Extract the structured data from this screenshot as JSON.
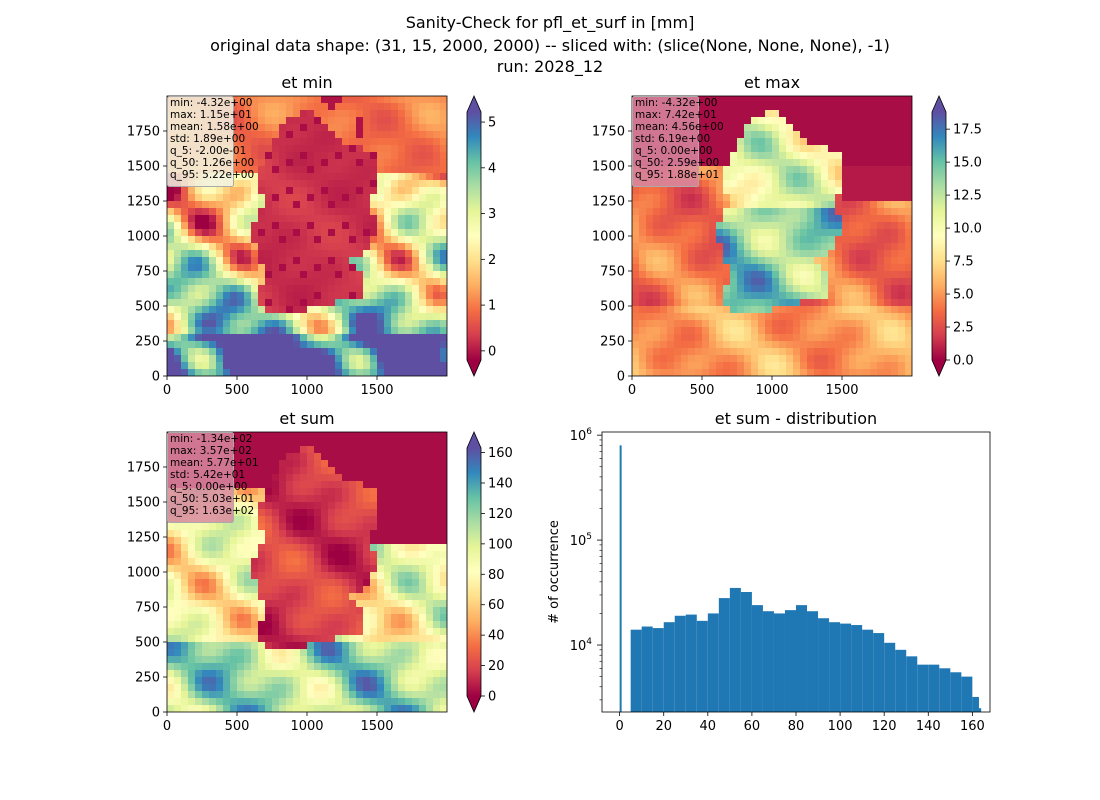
{
  "suptitle": {
    "line1": "Sanity-Check for pfl_et_surf in [mm]",
    "line2": "original data shape: (31, 15, 2000, 2000) -- sliced with: (slice(None, None, None), -1)",
    "line3": "run: 2028_12"
  },
  "panels": [
    {
      "key": "et_min",
      "title": "et min",
      "stats": [
        "min: -4.32e+00",
        "max: 1.15e+01",
        "mean: 1.58e+00",
        "std: 1.89e+00",
        "q_5: -2.00e-01",
        "q_50: 1.26e+00",
        "q_95: 5.22e+00"
      ],
      "xticks": [
        "0",
        "500",
        "1000",
        "1500"
      ],
      "yticks": [
        "0",
        "250",
        "500",
        "750",
        "1000",
        "1250",
        "1500",
        "1750"
      ],
      "colorbar": {
        "ticks": [
          "0",
          "1",
          "2",
          "3",
          "4",
          "5"
        ],
        "min": -0.2,
        "max": 5.22
      }
    },
    {
      "key": "et_max",
      "title": "et max",
      "stats": [
        "min: -4.32e+00",
        "max: 7.42e+01",
        "mean: 4.56e+00",
        "std: 6.19e+00",
        "q_5: 0.00e+00",
        "q_50: 2.59e+00",
        "q_95: 1.88e+01"
      ],
      "xticks": [
        "0",
        "500",
        "1000",
        "1500"
      ],
      "yticks": [
        "0",
        "250",
        "500",
        "750",
        "1000",
        "1250",
        "1500",
        "1750"
      ],
      "colorbar": {
        "ticks": [
          "0.0",
          "2.5",
          "5.0",
          "7.5",
          "10.0",
          "12.5",
          "15.0",
          "17.5"
        ],
        "min": 0,
        "max": 18.8
      }
    },
    {
      "key": "et_sum",
      "title": "et sum",
      "stats": [
        "min: -1.34e+02",
        "max: 3.57e+02",
        "mean: 5.77e+01",
        "std: 5.42e+01",
        "q_5: 0.00e+00",
        "q_50: 5.03e+01",
        "q_95: 1.63e+02"
      ],
      "xticks": [
        "0",
        "500",
        "1000",
        "1500"
      ],
      "yticks": [
        "0",
        "250",
        "500",
        "750",
        "1000",
        "1250",
        "1500",
        "1750"
      ],
      "colorbar": {
        "ticks": [
          "0",
          "20",
          "40",
          "60",
          "80",
          "100",
          "120",
          "140",
          "160"
        ],
        "min": 0,
        "max": 163
      }
    }
  ],
  "histogram": {
    "title": "et sum - distribution",
    "ylabel": "# of occurrence",
    "xticks": [
      "0",
      "20",
      "40",
      "60",
      "80",
      "100",
      "120",
      "140",
      "160"
    ],
    "ytick_exponents": [
      "6",
      "5",
      "4"
    ],
    "ytick_base": "10"
  },
  "colors": {
    "bar": "#1f77b4"
  },
  "chart_data": [
    {
      "type": "heatmap",
      "title": "et min",
      "xlim": [
        0,
        2000
      ],
      "ylim": [
        0,
        2000
      ],
      "colormap": "Spectral",
      "colorbar_range": [
        -0.2,
        5.22
      ],
      "extend": "both"
    },
    {
      "type": "heatmap",
      "title": "et max",
      "xlim": [
        0,
        2000
      ],
      "ylim": [
        0,
        2000
      ],
      "colormap": "Spectral",
      "colorbar_range": [
        0,
        18.8
      ],
      "extend": "both"
    },
    {
      "type": "heatmap",
      "title": "et sum",
      "xlim": [
        0,
        2000
      ],
      "ylim": [
        0,
        2000
      ],
      "colormap": "Spectral",
      "colorbar_range": [
        0,
        163
      ],
      "extend": "both"
    },
    {
      "type": "bar",
      "title": "et sum - distribution",
      "ylabel": "# of occurrence",
      "yscale": "log",
      "xlim": [
        -8,
        168
      ],
      "ylim": [
        2300,
        1000000
      ],
      "bins": [
        {
          "x": 0,
          "count": 800000
        },
        {
          "x": 5,
          "count": 14000
        },
        {
          "x": 10,
          "count": 15000
        },
        {
          "x": 15,
          "count": 14500
        },
        {
          "x": 20,
          "count": 16500
        },
        {
          "x": 25,
          "count": 19000
        },
        {
          "x": 30,
          "count": 19500
        },
        {
          "x": 35,
          "count": 17000
        },
        {
          "x": 40,
          "count": 20000
        },
        {
          "x": 45,
          "count": 28000
        },
        {
          "x": 50,
          "count": 35000
        },
        {
          "x": 55,
          "count": 32000
        },
        {
          "x": 60,
          "count": 24000
        },
        {
          "x": 65,
          "count": 21000
        },
        {
          "x": 70,
          "count": 20000
        },
        {
          "x": 75,
          "count": 21500
        },
        {
          "x": 80,
          "count": 24000
        },
        {
          "x": 85,
          "count": 21000
        },
        {
          "x": 90,
          "count": 18000
        },
        {
          "x": 95,
          "count": 16500
        },
        {
          "x": 100,
          "count": 16000
        },
        {
          "x": 105,
          "count": 15500
        },
        {
          "x": 110,
          "count": 14000
        },
        {
          "x": 115,
          "count": 13000
        },
        {
          "x": 120,
          "count": 10500
        },
        {
          "x": 125,
          "count": 9000
        },
        {
          "x": 130,
          "count": 7800
        },
        {
          "x": 135,
          "count": 6500
        },
        {
          "x": 140,
          "count": 6500
        },
        {
          "x": 145,
          "count": 6000
        },
        {
          "x": 150,
          "count": 5500
        },
        {
          "x": 155,
          "count": 5000
        },
        {
          "x": 160,
          "count": 3200
        },
        {
          "x": 163,
          "count": 2500
        }
      ]
    }
  ]
}
